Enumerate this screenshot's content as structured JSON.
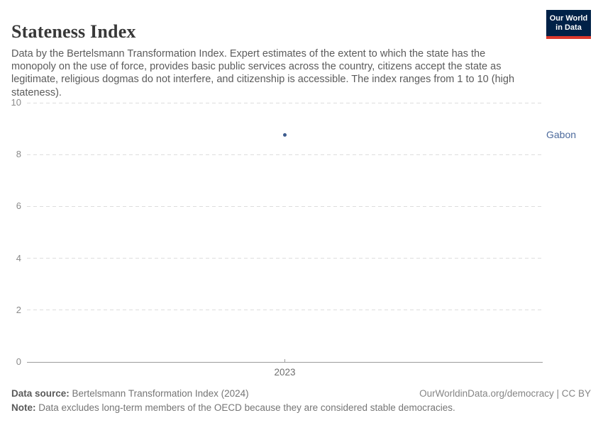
{
  "header": {
    "title": "Stateness Index",
    "subtitle": "Data by the Bertelsmann Transformation Index. Expert estimates of the extent to which the state has the monopoly on the use of force, provides basic public services across the country, citizens accept the state as legitimate, religious dogmas do not interfere, and citizenship is accessible. The index ranges from 1 to 10 (high stateness).",
    "logo": {
      "line1": "Our World",
      "line2": "in Data",
      "background": "#002147",
      "accent": "#dc392d"
    }
  },
  "chart_data": {
    "type": "scatter",
    "title": "Stateness Index",
    "x": [
      2023
    ],
    "series": [
      {
        "name": "Gabon",
        "values": [
          8.75
        ],
        "color": "#4c6a9c",
        "dot_color": "#3e5c8f"
      }
    ],
    "xlabel": "",
    "ylabel": "",
    "ylim": [
      0,
      10
    ],
    "yticks": [
      0,
      2,
      4,
      6,
      8,
      10
    ],
    "xticks": [
      2023
    ],
    "grid": true,
    "gridline_style": "dashed",
    "legend": "entity label right of plot"
  },
  "footer": {
    "source_label": "Data source:",
    "source_text": " Bertelsmann Transformation Index (2024)",
    "rights": "OurWorldinData.org/democracy | CC BY",
    "note_label": "Note:",
    "note_text": " Data excludes long-term members of the OECD because they are considered stable democracies."
  }
}
